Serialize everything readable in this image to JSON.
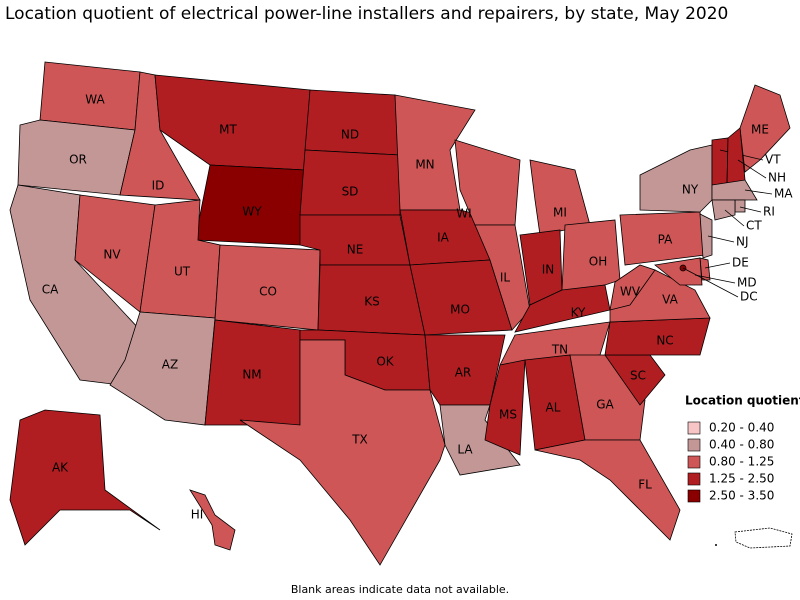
{
  "title": "Location quotient of electrical power-line installers and repairers, by state, May 2020",
  "legend": {
    "title": "Location quotient",
    "items": [
      {
        "label": "0.20 - 0.40",
        "color": "#f7c5c5"
      },
      {
        "label": "0.40 - 0.80",
        "color": "#c49797"
      },
      {
        "label": "0.80 - 1.25",
        "color": "#cf5656"
      },
      {
        "label": "1.25 - 2.50",
        "color": "#b01e22"
      },
      {
        "label": "2.50 - 3.50",
        "color": "#8a0000"
      }
    ]
  },
  "states": [
    {
      "name": "WA",
      "color": "#cf5656"
    },
    {
      "name": "OR",
      "color": "#c49797"
    },
    {
      "name": "CA",
      "color": "#c49797"
    },
    {
      "name": "NV",
      "color": "#cf5656"
    },
    {
      "name": "ID",
      "color": "#cf5656"
    },
    {
      "name": "MT",
      "color": "#b01e22"
    },
    {
      "name": "WY",
      "color": "#8a0000"
    },
    {
      "name": "UT",
      "color": "#cf5656"
    },
    {
      "name": "CO",
      "color": "#cf5656"
    },
    {
      "name": "AZ",
      "color": "#c49797"
    },
    {
      "name": "NM",
      "color": "#b01e22"
    },
    {
      "name": "ND",
      "color": "#b01e22"
    },
    {
      "name": "SD",
      "color": "#b01e22"
    },
    {
      "name": "NE",
      "color": "#b01e22"
    },
    {
      "name": "KS",
      "color": "#b01e22"
    },
    {
      "name": "OK",
      "color": "#b01e22"
    },
    {
      "name": "TX",
      "color": "#cf5656"
    },
    {
      "name": "MN",
      "color": "#cf5656"
    },
    {
      "name": "IA",
      "color": "#b01e22"
    },
    {
      "name": "MO",
      "color": "#b01e22"
    },
    {
      "name": "AR",
      "color": "#b01e22"
    },
    {
      "name": "LA",
      "color": "#c49797"
    },
    {
      "name": "WI",
      "color": "#cf5656"
    },
    {
      "name": "IL",
      "color": "#cf5656"
    },
    {
      "name": "MI",
      "color": "#cf5656"
    },
    {
      "name": "IN",
      "color": "#b01e22"
    },
    {
      "name": "OH",
      "color": "#cf5656"
    },
    {
      "name": "KY",
      "color": "#b01e22"
    },
    {
      "name": "TN",
      "color": "#cf5656"
    },
    {
      "name": "MS",
      "color": "#b01e22"
    },
    {
      "name": "AL",
      "color": "#b01e22"
    },
    {
      "name": "GA",
      "color": "#cf5656"
    },
    {
      "name": "FL",
      "color": "#cf5656"
    },
    {
      "name": "SC",
      "color": "#b01e22"
    },
    {
      "name": "NC",
      "color": "#b01e22"
    },
    {
      "name": "VA",
      "color": "#cf5656"
    },
    {
      "name": "WV",
      "color": "#cf5656"
    },
    {
      "name": "PA",
      "color": "#cf5656"
    },
    {
      "name": "NY",
      "color": "#c49797"
    },
    {
      "name": "ME",
      "color": "#cf5656"
    },
    {
      "name": "VT",
      "color": "#b01e22"
    },
    {
      "name": "NH",
      "color": "#b01e22"
    },
    {
      "name": "MA",
      "color": "#c49797"
    },
    {
      "name": "RI",
      "color": "#c49797"
    },
    {
      "name": "CT",
      "color": "#c49797"
    },
    {
      "name": "NJ",
      "color": "#c49797"
    },
    {
      "name": "DE",
      "color": "#cf5656"
    },
    {
      "name": "MD",
      "color": "#cf5656"
    },
    {
      "name": "DC",
      "color": "#8a0000"
    },
    {
      "name": "AK",
      "color": "#b01e22"
    },
    {
      "name": "HI",
      "color": "#cf5656"
    }
  ],
  "note": "Blank areas indicate data not available."
}
